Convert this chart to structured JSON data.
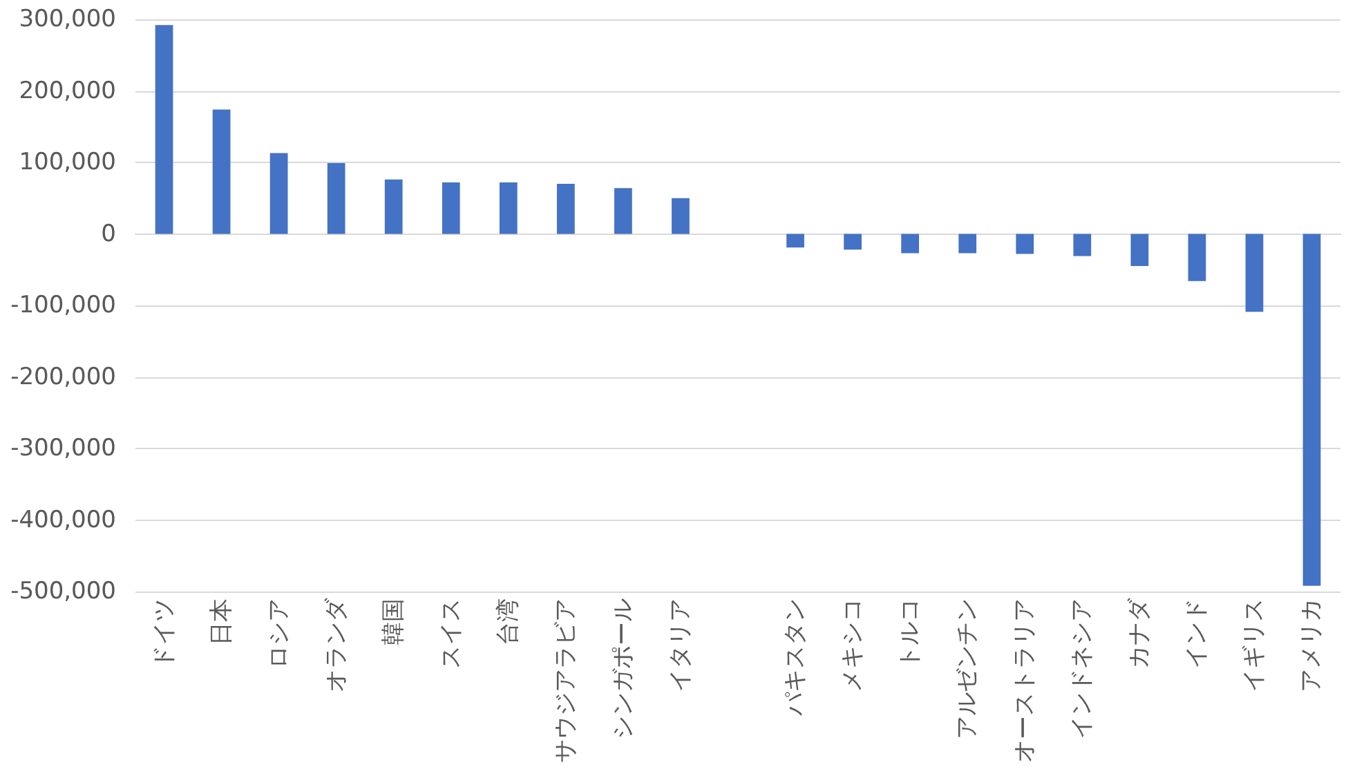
{
  "chart_data": {
    "type": "bar",
    "categories": [
      "ドイツ",
      "日本",
      "ロシア",
      "オランダ",
      "韓国",
      "スイス",
      "台湾",
      "サウジアラビア",
      "シンガポール",
      "イタリア",
      null,
      "パキスタン",
      "メキシコ",
      "トルコ",
      "アルゼンチン",
      "オーストラリア",
      "インドネシア",
      "カナダ",
      "インド",
      "イギリス",
      "アメリカ"
    ],
    "values": [
      292000,
      174000,
      113000,
      99000,
      76000,
      72000,
      72000,
      70000,
      64000,
      50000,
      null,
      -19000,
      -22000,
      -27000,
      -27000,
      -28000,
      -31000,
      -45000,
      -66000,
      -109000,
      -492000
    ],
    "color": "#4472c4",
    "ylim": [
      -500000,
      300000
    ],
    "yticks": [
      {
        "value": -500000,
        "label": "-500,000"
      },
      {
        "value": -400000,
        "label": "-400,000"
      },
      {
        "value": -300000,
        "label": "-300,000"
      },
      {
        "value": -200000,
        "label": "-200,000"
      },
      {
        "value": -100000,
        "label": "-100,000"
      },
      {
        "value": 0,
        "label": "0"
      },
      {
        "value": 100000,
        "label": "100,000"
      },
      {
        "value": 200000,
        "label": "200,000"
      },
      {
        "value": 300000,
        "label": "300,000"
      }
    ],
    "grid": "y"
  }
}
